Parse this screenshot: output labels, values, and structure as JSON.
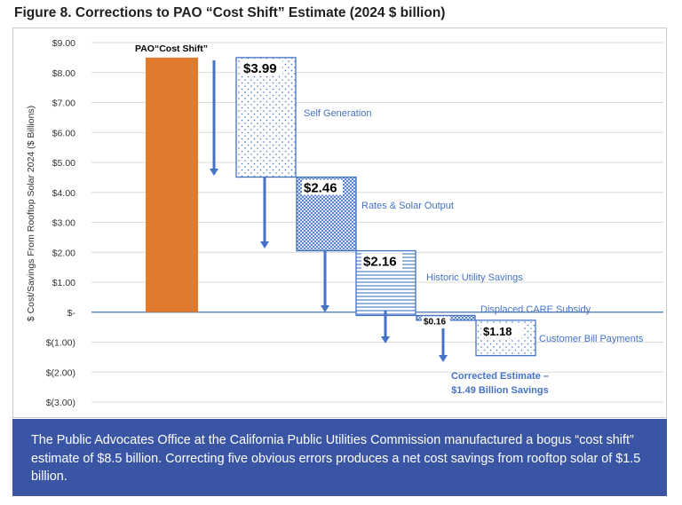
{
  "figure_title": "Figure 8. Corrections to PAO “Cost Shift” Estimate (2024 $ billion)",
  "caption": "The Public Advocates Office at the California Public Utilities Commission manufactured a bogus “cost shift” estimate of $8.5 billion. Correcting five obvious errors produces a net cost savings from rooftop solar of $1.5 billion.",
  "colors": {
    "pao_bar": "#e07b2e",
    "corrections": "#4472c4",
    "axis_text": "#333333",
    "grid": "#d9d9d9",
    "caption_bg": "#3b55a5"
  },
  "chart_data": {
    "type": "waterfall",
    "ylabel": "$ Cost/Savings From Rooftop Solar 2024 ($ Billions)",
    "ylim": [
      -3,
      9
    ],
    "y_ticks": [
      {
        "value": 9,
        "label": "$9.00"
      },
      {
        "value": 8,
        "label": "$8.00"
      },
      {
        "value": 7,
        "label": "$7.00"
      },
      {
        "value": 6,
        "label": "$6.00"
      },
      {
        "value": 5,
        "label": "$5.00"
      },
      {
        "value": 4,
        "label": "$4.00"
      },
      {
        "value": 3,
        "label": "$3.00"
      },
      {
        "value": 2,
        "label": "$2.00"
      },
      {
        "value": 1,
        "label": "$1.00"
      },
      {
        "value": 0,
        "label": "$-"
      },
      {
        "value": -1,
        "label": "$(1.00)"
      },
      {
        "value": -2,
        "label": "$(2.00)"
      },
      {
        "value": -3,
        "label": "$(3.00)"
      }
    ],
    "start": {
      "name": "PAO“Cost Shift”",
      "value": 8.5
    },
    "steps": [
      {
        "name": "Self Generation",
        "value": -3.99,
        "label": "$3.99",
        "pattern": "dots"
      },
      {
        "name": "Rates & Solar Output",
        "value": -2.46,
        "label": "$2.46",
        "pattern": "cross"
      },
      {
        "name": "Historic Utility Savings",
        "value": -2.16,
        "label": "$2.16",
        "pattern": "hlines"
      },
      {
        "name": "Displaced CARE Subsidy",
        "value": -0.16,
        "label": "$0.16",
        "pattern": "cross"
      },
      {
        "name": "Customer Bill Payments",
        "value": -1.18,
        "label": "$1.18",
        "pattern": "dots"
      }
    ],
    "result": {
      "label_line1": "Corrected Estimate –",
      "label_line2": "$1.49 Billion Savings",
      "value": -1.49
    }
  }
}
